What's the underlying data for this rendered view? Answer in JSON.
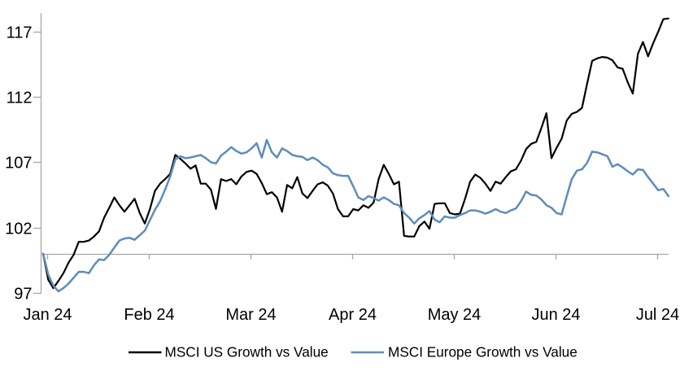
{
  "chart_data": {
    "type": "line",
    "title": "",
    "x_axis": {
      "tick_labels": [
        "Jan 24",
        "Feb 24",
        "Mar 24",
        "Apr 24",
        "May 24",
        "Jun 24",
        "Jul 24"
      ],
      "unit": "month"
    },
    "y_axis": {
      "ticks": [
        97,
        102,
        107,
        112,
        117
      ],
      "min": 97,
      "max": 117
    },
    "baseline_value": 100,
    "axis_color": "#a6a6a6",
    "legend_position": "bottom",
    "series": [
      {
        "name": "MSCI US Growth vs Value",
        "color": "#000000",
        "x_start_months": -0.04,
        "x_step_months": 0.05,
        "values": [
          100.0,
          98.0,
          97.35,
          97.9,
          98.5,
          99.3,
          99.9,
          100.9,
          100.9,
          101.0,
          101.3,
          101.7,
          102.75,
          103.5,
          104.3,
          103.7,
          103.2,
          103.7,
          104.2,
          103.1,
          102.3,
          103.4,
          104.8,
          105.35,
          105.7,
          106.1,
          107.55,
          107.25,
          106.9,
          106.5,
          106.75,
          105.35,
          105.35,
          104.9,
          103.42,
          105.7,
          105.55,
          105.7,
          105.3,
          105.9,
          106.25,
          106.35,
          106.1,
          105.4,
          104.55,
          104.7,
          104.3,
          103.2,
          105.25,
          105.0,
          105.85,
          104.6,
          104.25,
          104.8,
          105.3,
          105.45,
          105.2,
          104.6,
          103.4,
          102.85,
          102.85,
          103.4,
          103.3,
          103.7,
          103.5,
          103.9,
          105.7,
          106.8,
          106.1,
          105.3,
          105.5,
          101.35,
          101.3,
          101.3,
          102.1,
          102.45,
          101.9,
          103.8,
          103.85,
          103.85,
          103.1,
          103.0,
          103.05,
          104.2,
          105.5,
          106.05,
          105.8,
          105.35,
          104.8,
          105.5,
          105.35,
          105.85,
          106.3,
          106.45,
          107.1,
          108.0,
          108.4,
          108.55,
          109.6,
          110.75,
          107.3,
          108.1,
          108.8,
          110.2,
          110.7,
          110.85,
          111.15,
          113.0,
          114.75,
          114.95,
          115.05,
          115.0,
          114.8,
          114.25,
          114.15,
          113.1,
          112.25,
          115.3,
          116.2,
          115.1,
          116.1,
          117.0,
          117.95,
          118.0
        ]
      },
      {
        "name": "MSCI Europe Growth vs Value",
        "color": "#5E8CBB",
        "x_start_months": -0.04,
        "x_step_months": 0.05,
        "values": [
          100.0,
          98.4,
          97.55,
          97.1,
          97.35,
          97.7,
          98.15,
          98.6,
          98.6,
          98.5,
          99.1,
          99.55,
          99.5,
          99.9,
          100.45,
          101.0,
          101.15,
          101.2,
          101.05,
          101.4,
          101.75,
          102.55,
          103.35,
          104.0,
          104.9,
          105.9,
          107.2,
          107.45,
          107.3,
          107.35,
          107.45,
          107.55,
          107.3,
          107.0,
          106.9,
          107.5,
          107.8,
          108.15,
          107.85,
          107.65,
          107.75,
          108.05,
          108.45,
          107.35,
          108.7,
          107.75,
          107.35,
          108.05,
          107.85,
          107.55,
          107.45,
          107.4,
          107.15,
          107.35,
          107.15,
          106.8,
          106.6,
          106.15,
          106.0,
          105.95,
          105.95,
          105.15,
          104.3,
          104.1,
          104.4,
          104.25,
          104.05,
          104.3,
          104.1,
          103.8,
          103.7,
          103.1,
          102.75,
          102.3,
          102.7,
          102.95,
          103.25,
          102.6,
          102.4,
          102.85,
          102.75,
          102.75,
          102.95,
          103.1,
          103.3,
          103.3,
          103.2,
          103.05,
          103.2,
          103.4,
          103.2,
          103.1,
          103.3,
          103.45,
          104.0,
          104.75,
          104.5,
          104.45,
          104.15,
          103.7,
          103.5,
          103.1,
          103.0,
          104.4,
          105.7,
          106.35,
          106.45,
          106.95,
          107.8,
          107.75,
          107.6,
          107.45,
          106.65,
          106.85,
          106.6,
          106.3,
          106.05,
          106.45,
          106.4,
          105.85,
          105.35,
          104.85,
          104.95,
          104.4
        ]
      }
    ]
  }
}
